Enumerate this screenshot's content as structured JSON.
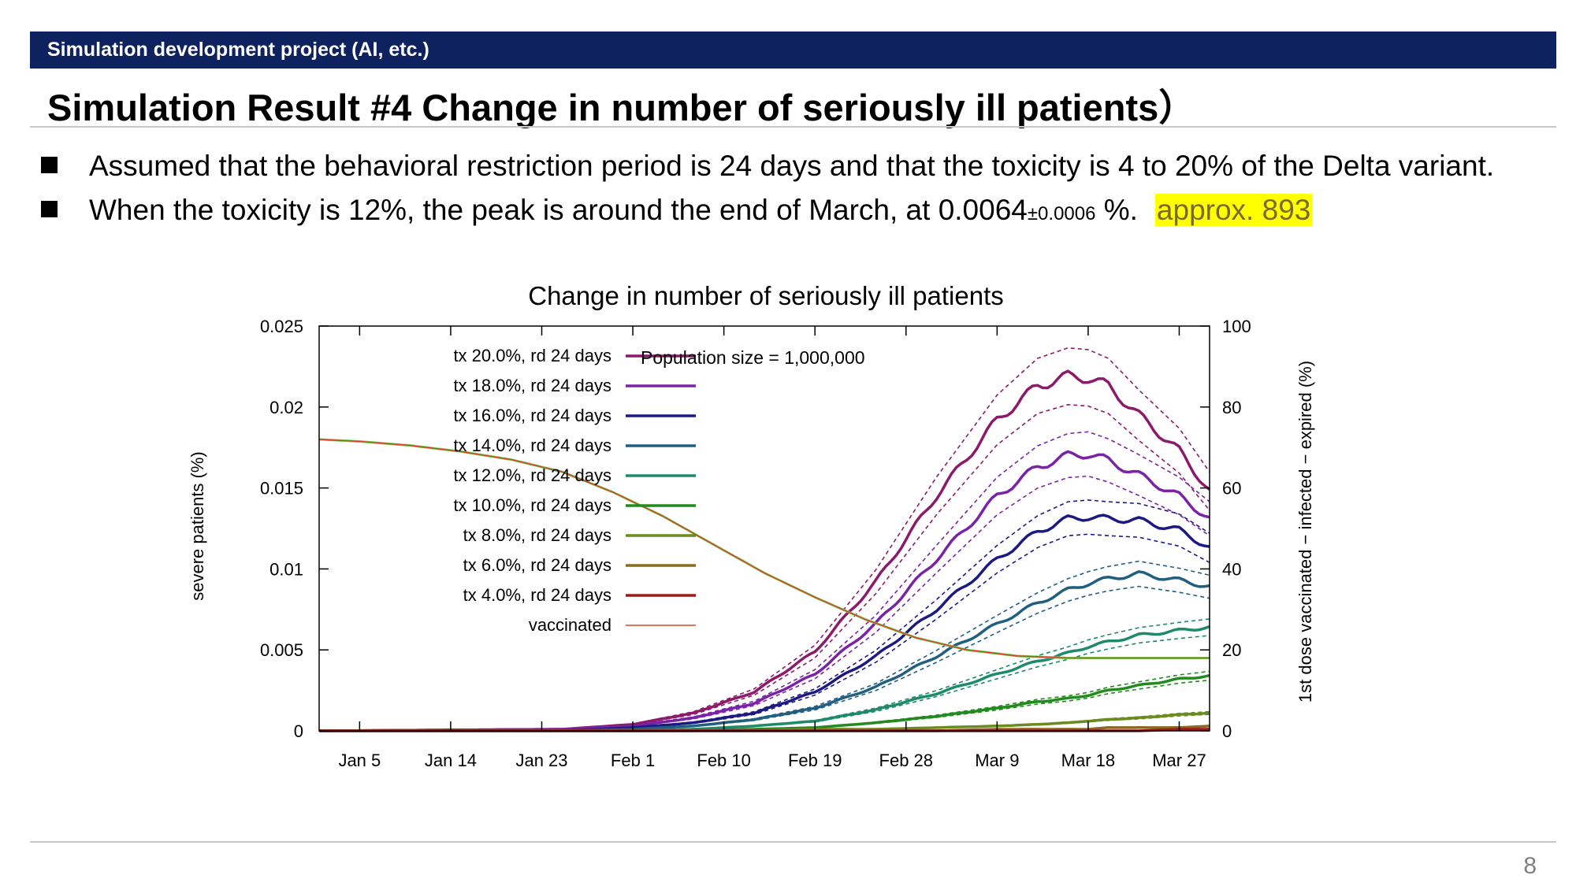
{
  "header": {
    "banner": "Simulation development project (AI, etc.)",
    "title": "Simulation Result #4 Change in number of seriously ill patients）"
  },
  "bullets": {
    "b1": "Assumed that the behavioral restriction period is 24 days and that the toxicity is 4 to 20% of the Delta variant.",
    "b2_main": "When the toxicity is 12%, the peak is around the end of March, at 0.0064",
    "b2_pm": "±0.0006",
    "b2_end": " %.",
    "b2_highlight": "approx. 893"
  },
  "page_number": "8",
  "chart_data": {
    "type": "line",
    "title": "Change in number of seriously ill patients",
    "annotation": "Population size = 1,000,000",
    "ylabel": "severe patients (%)",
    "y2label": "1st dose vaccinated − infected − expired (%)",
    "ylim": [
      0,
      0.025
    ],
    "y2lim": [
      0,
      100
    ],
    "y_ticks": [
      "0",
      "0.005",
      "0.01",
      "0.015",
      "0.02",
      "0.025"
    ],
    "y2_ticks": [
      "0",
      "20",
      "40",
      "60",
      "80",
      "100"
    ],
    "x_ticks": [
      "Jan 5",
      "Jan 14",
      "Jan 23",
      "Feb 1",
      "Feb 10",
      "Feb 19",
      "Feb 28",
      "Mar 9",
      "Mar 18",
      "Mar 27"
    ],
    "x_tick_days": [
      5,
      14,
      23,
      32,
      41,
      50,
      59,
      68,
      77,
      86
    ],
    "xlim_days": [
      1,
      89
    ],
    "legend_position": "top-left",
    "grid": false,
    "series": [
      {
        "name": "tx 20.0%, rd 24 days",
        "color": "#8b1a6b",
        "x": [
          1,
          25,
          32,
          38,
          44,
          50,
          56,
          62,
          68,
          72,
          75,
          77,
          79,
          82,
          86,
          89
        ],
        "values": [
          0,
          0.0001,
          0.0004,
          0.0011,
          0.0024,
          0.0049,
          0.0092,
          0.0145,
          0.0192,
          0.0213,
          0.0219,
          0.0218,
          0.0213,
          0.0195,
          0.0173,
          0.0148
        ]
      },
      {
        "name": "tx 18.0%, rd 24 days",
        "color": "#7a23a6",
        "x": [
          1,
          25,
          32,
          38,
          44,
          50,
          56,
          62,
          68,
          72,
          75,
          77,
          79,
          82,
          86,
          89
        ],
        "values": [
          0,
          0.0001,
          0.0003,
          0.0008,
          0.0017,
          0.0035,
          0.0066,
          0.0106,
          0.0145,
          0.0163,
          0.017,
          0.0171,
          0.0167,
          0.0158,
          0.0145,
          0.0131
        ]
      },
      {
        "name": "tx 16.0%, rd 24 days",
        "color": "#1c1a82",
        "x": [
          1,
          25,
          32,
          38,
          44,
          50,
          56,
          62,
          68,
          72,
          75,
          77,
          79,
          82,
          86,
          89
        ],
        "values": [
          0,
          0,
          0.0002,
          0.0005,
          0.0011,
          0.0024,
          0.0046,
          0.0075,
          0.0106,
          0.0123,
          0.0131,
          0.0132,
          0.0131,
          0.013,
          0.0124,
          0.0113
        ]
      },
      {
        "name": "tx 14.0%, rd 24 days",
        "color": "#215f80",
        "x": [
          1,
          25,
          32,
          38,
          44,
          50,
          56,
          62,
          68,
          72,
          75,
          77,
          79,
          82,
          86,
          89
        ],
        "values": [
          0,
          0,
          0.0001,
          0.0003,
          0.0007,
          0.0014,
          0.0027,
          0.0046,
          0.0066,
          0.0079,
          0.0087,
          0.0091,
          0.0094,
          0.0097,
          0.0093,
          0.0089
        ]
      },
      {
        "name": "tx 12.0%, rd 24 days",
        "color": "#1d8a6a",
        "x": [
          1,
          25,
          32,
          38,
          44,
          50,
          56,
          62,
          68,
          72,
          75,
          77,
          79,
          82,
          86,
          89
        ],
        "values": [
          0,
          0,
          0,
          0.0001,
          0.0003,
          0.0006,
          0.0013,
          0.0023,
          0.0035,
          0.0043,
          0.0048,
          0.0052,
          0.0055,
          0.0059,
          0.0062,
          0.0064
        ]
      },
      {
        "name": "tx 10.0%, rd 24 days",
        "color": "#238a1f",
        "x": [
          1,
          25,
          32,
          38,
          44,
          50,
          56,
          62,
          68,
          72,
          75,
          77,
          79,
          82,
          86,
          89
        ],
        "values": [
          0,
          0,
          0,
          0,
          0.0001,
          0.0002,
          0.0005,
          0.0009,
          0.0014,
          0.0018,
          0.002,
          0.0022,
          0.0025,
          0.0028,
          0.0032,
          0.0034
        ]
      },
      {
        "name": "tx 8.0%, rd 24 days",
        "color": "#6a8c1f",
        "x": [
          1,
          25,
          32,
          38,
          44,
          50,
          56,
          62,
          68,
          72,
          75,
          77,
          79,
          82,
          86,
          89
        ],
        "values": [
          0,
          0,
          0,
          0,
          0,
          0.0001,
          0.0001,
          0.0002,
          0.0003,
          0.0004,
          0.0005,
          0.0006,
          0.0007,
          0.0008,
          0.001,
          0.0011
        ]
      },
      {
        "name": "tx 6.0%, rd 24 days",
        "color": "#8a6a1f",
        "x": [
          1,
          25,
          32,
          38,
          44,
          50,
          56,
          62,
          68,
          72,
          75,
          77,
          79,
          82,
          86,
          89
        ],
        "values": [
          0,
          0,
          0,
          0,
          0,
          0,
          0,
          0,
          0.0001,
          0.0001,
          0.0001,
          0.0001,
          0.0002,
          0.0002,
          0.0002,
          0.0003
        ]
      },
      {
        "name": "tx 4.0%, rd 24 days",
        "color": "#9c1a1a",
        "x": [
          1,
          25,
          32,
          38,
          44,
          50,
          56,
          62,
          68,
          72,
          75,
          77,
          79,
          82,
          86,
          89
        ],
        "values": [
          0,
          0,
          0,
          0,
          0,
          0,
          0,
          0,
          0,
          0,
          0,
          0,
          0,
          0,
          0.0001,
          0.0001
        ]
      },
      {
        "name": "vaccinated",
        "color": "#d2462a",
        "axis": "right",
        "x": [
          1,
          5,
          10,
          15,
          20,
          25,
          30,
          35,
          40,
          45,
          50,
          55,
          60,
          65,
          70,
          75,
          80,
          85,
          89
        ],
        "values": [
          72,
          71.5,
          70.5,
          69,
          67,
          64,
          59,
          53,
          46,
          39,
          33,
          27.5,
          23,
          20,
          18.5,
          18,
          18,
          18,
          18
        ]
      }
    ]
  }
}
